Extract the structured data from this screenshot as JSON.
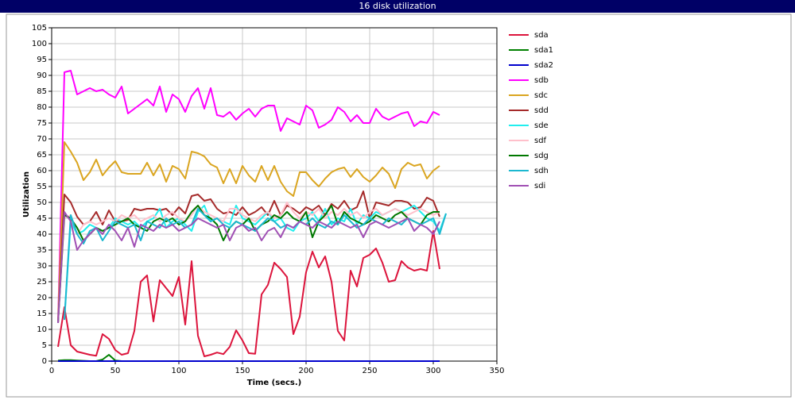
{
  "chart_data": {
    "type": "line",
    "title": "16 disk utilization",
    "x_label": "Time (secs.)",
    "y_label": "Utilization",
    "xlim": [
      0,
      350
    ],
    "ylim": [
      0,
      105
    ],
    "xticks": [
      0,
      50,
      100,
      150,
      200,
      250,
      300,
      350
    ],
    "yticks": [
      0,
      5,
      10,
      15,
      20,
      25,
      30,
      35,
      40,
      45,
      50,
      55,
      60,
      65,
      70,
      75,
      80,
      85,
      90,
      95,
      100,
      105
    ],
    "grid": true,
    "legend": "right",
    "x": [
      5,
      10,
      15,
      20,
      25,
      30,
      35,
      40,
      45,
      50,
      55,
      60,
      65,
      70,
      75,
      80,
      85,
      90,
      95,
      100,
      105,
      110,
      115,
      120,
      125,
      130,
      135,
      140,
      145,
      150,
      155,
      160,
      165,
      170,
      175,
      180,
      185,
      190,
      195,
      200,
      205,
      210,
      215,
      220,
      225,
      230,
      235,
      240,
      245,
      250,
      255,
      260,
      265,
      270,
      275,
      280,
      285,
      290,
      295,
      300,
      305,
      310
    ],
    "series": [
      {
        "name": "sda",
        "color": "#dc143c",
        "values": [
          4.5,
          17,
          5,
          3,
          2.5,
          2,
          1.7,
          8.5,
          7,
          3.5,
          2,
          2.5,
          9.5,
          25,
          27,
          12.5,
          25.5,
          23,
          20.5,
          26.5,
          11.5,
          31.5,
          8,
          1.5,
          2,
          2.7,
          2.2,
          4.5,
          9.7,
          6.5,
          2.5,
          2.3,
          21,
          24,
          31,
          29,
          26.5,
          8.5,
          14,
          28,
          34.5,
          29.5,
          33,
          25,
          9.5,
          6.5,
          28.5,
          23.5,
          32.5,
          33.5,
          35.5,
          31,
          25,
          25.5,
          31.5,
          29.5,
          28.5,
          29,
          28.5,
          41,
          29,
          null
        ]
      },
      {
        "name": "sda1",
        "color": "#008000",
        "values": [
          0.2,
          0.3,
          0.3,
          0.2,
          0.1,
          0,
          0,
          0.5,
          2,
          0.2,
          0,
          0,
          0,
          0,
          0,
          0,
          0,
          0,
          0,
          0,
          0,
          0,
          0,
          0,
          0,
          0,
          0,
          0,
          0,
          0,
          0,
          0,
          0,
          0,
          0,
          0,
          0,
          0,
          0,
          0,
          0,
          0,
          0,
          0,
          0,
          0,
          0,
          0,
          0,
          0,
          0,
          0,
          0,
          0,
          0,
          0,
          0,
          0,
          0,
          0,
          0,
          null
        ]
      },
      {
        "name": "sda2",
        "color": "#0000cd",
        "values": [
          0,
          0,
          0,
          0,
          0,
          0,
          0,
          0,
          0,
          0,
          0,
          0,
          0,
          0,
          0,
          0,
          0,
          0,
          0,
          0,
          0,
          0,
          0,
          0,
          0,
          0,
          0,
          0,
          0,
          0,
          0,
          0,
          0,
          0,
          0,
          0,
          0,
          0,
          0,
          0,
          0,
          0,
          0,
          0,
          0,
          0,
          0,
          0,
          0,
          0,
          0,
          0,
          0,
          0,
          0,
          0,
          0,
          0,
          0,
          0,
          0,
          null
        ]
      },
      {
        "name": "sdb",
        "color": "#ff00ff",
        "values": [
          12,
          91,
          91.5,
          84,
          85,
          86,
          85,
          85.5,
          84,
          83,
          86.5,
          78,
          79.5,
          81,
          82.5,
          80.5,
          86.5,
          78.5,
          84,
          82.5,
          78.5,
          83.5,
          86,
          79.5,
          86,
          77.5,
          77,
          78.5,
          76,
          78,
          79.5,
          77,
          79.5,
          80.5,
          80.5,
          72.5,
          76.5,
          75.5,
          74.5,
          80.5,
          79,
          73.5,
          74.5,
          76,
          80,
          78.5,
          75.5,
          77.5,
          75,
          75,
          79.5,
          77,
          76,
          77,
          78,
          78.5,
          74,
          75.5,
          75,
          78.5,
          77.5,
          null
        ]
      },
      {
        "name": "sdc",
        "color": "#daa520",
        "values": [
          12,
          69,
          66,
          62.5,
          57,
          59.5,
          63.5,
          58.5,
          61,
          63,
          59.5,
          59,
          59,
          59,
          62.5,
          58.5,
          62,
          56.5,
          61.5,
          60.5,
          57.5,
          66,
          65.5,
          64.5,
          62,
          61,
          56,
          60.5,
          56,
          61.5,
          58.5,
          56.5,
          61.5,
          57,
          61.5,
          56.5,
          53.5,
          52,
          59.5,
          59.5,
          57,
          55,
          57.5,
          59.5,
          60.5,
          61,
          58,
          60.5,
          58,
          56.5,
          58.5,
          61,
          59,
          54.5,
          60.5,
          62.5,
          61.5,
          62,
          57.5,
          60,
          61.5,
          null
        ]
      },
      {
        "name": "sdd",
        "color": "#a52a2a",
        "values": [
          12,
          52.5,
          50,
          45.5,
          43,
          44,
          47,
          43,
          47.5,
          44,
          44,
          44.5,
          48,
          47.5,
          48,
          48,
          47.5,
          48,
          46,
          48.5,
          46.5,
          52,
          52.5,
          50.5,
          51,
          48,
          46.5,
          47,
          46,
          48.5,
          46,
          47,
          48.5,
          46,
          50.5,
          46,
          49,
          48,
          46.5,
          48.5,
          47.5,
          49,
          46,
          49.5,
          48,
          50.5,
          47.5,
          48.5,
          53.5,
          45,
          50,
          49.5,
          49,
          50.5,
          50.5,
          50,
          48,
          48.5,
          51.5,
          50.5,
          45.5,
          null
        ]
      },
      {
        "name": "sde",
        "color": "#22eeee",
        "values": [
          null,
          13,
          44,
          40,
          41,
          43,
          42,
          41,
          42,
          45,
          44,
          43,
          44,
          42,
          44,
          45,
          48,
          42,
          44,
          45,
          43,
          41,
          47,
          49,
          44,
          45,
          44,
          43,
          49,
          45,
          44,
          43,
          45,
          47,
          44,
          45,
          42,
          41,
          44,
          45,
          47,
          44,
          48,
          43,
          45,
          44,
          48,
          43,
          46,
          45,
          47,
          46,
          47,
          48,
          47,
          48,
          49,
          47,
          45,
          44,
          41,
          46.5
        ]
      },
      {
        "name": "sdf",
        "color": "#ffc0cb",
        "values": [
          12,
          45,
          46,
          40,
          43,
          44,
          43,
          44,
          45,
          44,
          46,
          45,
          46,
          44,
          45,
          46,
          44,
          46,
          47,
          45,
          44,
          46,
          49,
          47,
          46,
          45,
          44,
          48,
          48,
          46,
          45,
          44,
          46,
          47,
          45,
          46,
          50,
          47,
          45,
          47,
          46,
          48,
          45,
          47,
          46,
          48,
          46,
          47,
          45,
          47,
          48,
          46,
          47,
          48,
          47,
          46,
          47,
          48,
          47,
          46,
          47,
          null
        ]
      },
      {
        "name": "sdg",
        "color": "#007800",
        "values": [
          12,
          46,
          45,
          42,
          38,
          40,
          42,
          41,
          42,
          43,
          44,
          45,
          43,
          42,
          41,
          44,
          45,
          44,
          45,
          43,
          44,
          47,
          49,
          46,
          45,
          43,
          38,
          42,
          44,
          43,
          45,
          41,
          43,
          44,
          46,
          45,
          47,
          45,
          44,
          47,
          39,
          44,
          46,
          49,
          43,
          47,
          45,
          44,
          43,
          44,
          46,
          45,
          44,
          46,
          47,
          45,
          44,
          43,
          46,
          47,
          47,
          null
        ]
      },
      {
        "name": "sdh",
        "color": "#1cb8d0",
        "values": [
          null,
          13,
          46,
          40,
          37,
          41,
          42,
          38,
          41,
          44,
          43,
          42,
          43,
          38,
          44,
          43,
          42,
          45,
          43,
          44,
          42,
          43,
          48,
          46,
          44,
          45,
          43,
          42,
          44,
          43,
          42,
          41,
          43,
          45,
          44,
          42,
          43,
          42,
          44,
          43,
          45,
          43,
          42,
          44,
          43,
          46,
          44,
          42,
          43,
          45,
          44,
          43,
          45,
          44,
          43,
          45,
          44,
          43,
          44,
          45,
          40,
          46.5
        ]
      },
      {
        "name": "sdi",
        "color": "#a050b4",
        "values": [
          12,
          47,
          44,
          35,
          38,
          40,
          42,
          40,
          43,
          41,
          38,
          42,
          36,
          43,
          42,
          41,
          43,
          42,
          43,
          41,
          42,
          43,
          45,
          44,
          43,
          42,
          43,
          38,
          42,
          43,
          41,
          42,
          38,
          41,
          42,
          39,
          43,
          42,
          44,
          43,
          42,
          44,
          43,
          42,
          44,
          43,
          42,
          43,
          39,
          43,
          44,
          43,
          42,
          43,
          44,
          45,
          41,
          43,
          42,
          40,
          44,
          null
        ]
      }
    ]
  }
}
